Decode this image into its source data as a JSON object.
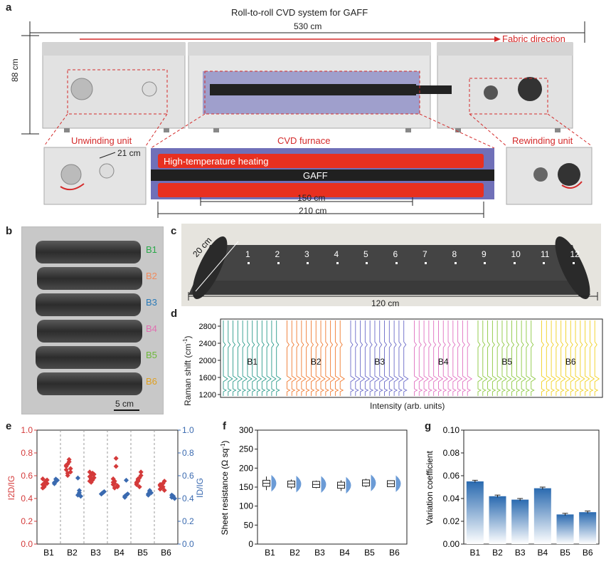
{
  "panel_a": {
    "label": "a",
    "title": "Roll-to-roll CVD system for GAFF",
    "length": "530 cm",
    "height": "88 cm",
    "fabric_direction": "Fabric direction",
    "unwinding_unit": "Unwinding unit",
    "cvd_furnace": "CVD furnace",
    "rewinding_unit": "Rewinding unit",
    "roll_width": "21 cm",
    "heating_label": "High-temperature heating",
    "gaff_label": "GAFF",
    "heated_length": "150 cm",
    "furnace_length": "210 cm"
  },
  "panel_b": {
    "label": "b",
    "rolls": [
      {
        "name": "B1",
        "color": "#2aa84a"
      },
      {
        "name": "B2",
        "color": "#f08a5d"
      },
      {
        "name": "B3",
        "color": "#2a7ab8"
      },
      {
        "name": "B4",
        "color": "#e06fb0"
      },
      {
        "name": "B5",
        "color": "#6cb83a"
      },
      {
        "name": "B6",
        "color": "#e0a020"
      }
    ],
    "scale": "5 cm"
  },
  "panel_c": {
    "label": "c",
    "width": "20 cm",
    "length": "120 cm",
    "points": [
      "1",
      "2",
      "3",
      "4",
      "5",
      "6",
      "7",
      "8",
      "9",
      "10",
      "11",
      "12"
    ]
  },
  "panel_d": {
    "label": "d",
    "ylabel": "Raman shift (cm",
    "ylabel_sup": "-1",
    "ylabel_end": ")",
    "xlabel": "Intensity (arb. units)",
    "yticks": [
      "2800",
      "2400",
      "2000",
      "1600",
      "1200"
    ],
    "groups": [
      {
        "name": "B1",
        "color": "#2a9a8a"
      },
      {
        "name": "B2",
        "color": "#f07a30"
      },
      {
        "name": "B3",
        "color": "#6a6ac8"
      },
      {
        "name": "B4",
        "color": "#e070c0"
      },
      {
        "name": "B5",
        "color": "#8cc840"
      },
      {
        "name": "B6",
        "color": "#f0d020"
      }
    ]
  },
  "chart_data": [
    {
      "type": "scatter",
      "label": "e",
      "categories": [
        "B1",
        "B2",
        "B3",
        "B4",
        "B5",
        "B6"
      ],
      "ylabel_left": "I2D/IG",
      "ylabel_right": "ID/IG",
      "ylim_left": [
        0.0,
        1.0
      ],
      "ylim_right": [
        0.0,
        1.0
      ],
      "yticks": [
        "0.0",
        "0.2",
        "0.4",
        "0.6",
        "0.8",
        "1.0"
      ],
      "series": [
        {
          "axis": "left",
          "color": "#d43a3a",
          "values": [
            [
              0.52,
              0.5,
              0.55,
              0.53,
              0.57,
              0.51,
              0.54,
              0.56,
              0.49,
              0.53
            ],
            [
              0.65,
              0.7,
              0.72,
              0.63,
              0.68,
              0.6,
              0.74,
              0.66,
              0.69,
              0.62
            ],
            [
              0.55,
              0.6,
              0.62,
              0.58,
              0.63,
              0.57,
              0.56,
              0.61,
              0.59,
              0.54
            ],
            [
              0.52,
              0.55,
              0.75,
              0.5,
              0.54,
              0.53,
              0.68,
              0.51,
              0.57,
              0.49
            ],
            [
              0.52,
              0.55,
              0.58,
              0.63,
              0.54,
              0.57,
              0.5,
              0.6,
              0.53,
              0.56
            ],
            [
              0.48,
              0.52,
              0.5,
              0.55,
              0.51,
              0.49,
              0.53,
              0.47,
              0.52,
              0.5
            ]
          ]
        },
        {
          "axis": "right",
          "color": "#3a6ab0",
          "values": [
            [
              0.54,
              0.55,
              0.56,
              0.53,
              0.57
            ],
            [
              0.43,
              0.45,
              0.42,
              0.58,
              0.47
            ],
            [
              0.44,
              0.45,
              0.46,
              0.44,
              0.45
            ],
            [
              0.42,
              0.43,
              0.44,
              0.41,
              0.56
            ],
            [
              0.44,
              0.46,
              0.45,
              0.43,
              0.47
            ],
            [
              0.41,
              0.42,
              0.4,
              0.43,
              0.42
            ]
          ]
        }
      ]
    },
    {
      "type": "box",
      "label": "f",
      "categories": [
        "B1",
        "B2",
        "B3",
        "B4",
        "B5",
        "B6"
      ],
      "ylabel": "Sheet resistance (Ω sq",
      "ylabel_sup": "-1",
      "ylabel_end": ")",
      "ylim": [
        0,
        300
      ],
      "yticks": [
        "0",
        "50",
        "100",
        "150",
        "200",
        "250",
        "300"
      ],
      "values": [
        160,
        158,
        157,
        155,
        161,
        159
      ],
      "whisker": [
        [
          142,
          178
        ],
        [
          145,
          170
        ],
        [
          147,
          167
        ],
        [
          140,
          168
        ],
        [
          150,
          172
        ],
        [
          150,
          168
        ]
      ]
    },
    {
      "type": "bar",
      "label": "g",
      "categories": [
        "B1",
        "B2",
        "B3",
        "B4",
        "B5",
        "B6"
      ],
      "values": [
        0.055,
        0.042,
        0.039,
        0.049,
        0.026,
        0.028
      ],
      "errors": [
        0.001,
        0.001,
        0.001,
        0.001,
        0.001,
        0.001
      ],
      "ylabel": "Variation coefficient",
      "ylim": [
        0.0,
        0.1
      ],
      "yticks": [
        "0.00",
        "0.02",
        "0.04",
        "0.06",
        "0.08",
        "0.10"
      ],
      "color": "#2a6ab0"
    }
  ]
}
